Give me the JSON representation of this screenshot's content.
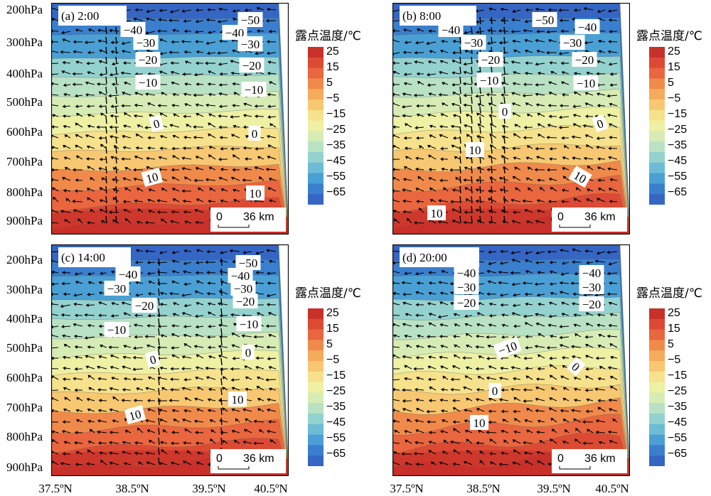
{
  "colorbar": {
    "title": "露点温度/℃",
    "ticks": [
      "25",
      "15",
      "5",
      "−5",
      "−15",
      "−25",
      "−35",
      "−45",
      "−55",
      "−65"
    ],
    "colors": [
      "#c8302a",
      "#dc4a34",
      "#e9663e",
      "#f08a4b",
      "#f5ab5c",
      "#f7c871",
      "#f6e28c",
      "#eef0a3",
      "#d7ecb5",
      "#b8e2c3",
      "#94d2cf",
      "#6cbcd6",
      "#4aa0d4",
      "#3a7fcd",
      "#3566c4"
    ]
  },
  "x_ticks": [
    "37.5ºN",
    "38.5ºN",
    "39.5ºN",
    "40.5ºN"
  ],
  "pressure_ticks": [
    "200hPa",
    "300hPa",
    "400hPa",
    "500hPa",
    "600hPa",
    "700hPa",
    "800hPa",
    "900hPa"
  ],
  "scale_bar": {
    "start": "0",
    "end": "36 km"
  },
  "panels": [
    {
      "title": "(a) 2:00",
      "contour_labels": [
        "−50",
        "−40",
        "−40",
        "−30",
        "−30",
        "−20",
        "−20",
        "−10",
        "−10",
        "0",
        "0",
        "10",
        "10"
      ]
    },
    {
      "title": "(b) 8:00",
      "contour_labels": [
        "−50",
        "−40",
        "−40",
        "−30",
        "−30",
        "−20",
        "−20",
        "−10",
        "−10",
        "0",
        "0",
        "10",
        "10",
        "10"
      ]
    },
    {
      "title": "(c) 14:00",
      "contour_labels": [
        "−50",
        "−40",
        "−40",
        "−30",
        "−30",
        "−20",
        "−20",
        "−10",
        "−10",
        "0",
        "0",
        "10",
        "10"
      ]
    },
    {
      "title": "(d) 20:00",
      "contour_labels": [
        "−40",
        "−40",
        "−30",
        "−30",
        "−20",
        "−20",
        "−10",
        "0",
        "0",
        "10"
      ]
    }
  ],
  "chart_data": {
    "type": "heatmap",
    "title": "",
    "xlabel": "",
    "ylabel": "",
    "x": [
      "37.5ºN",
      "38.5ºN",
      "39.5ºN",
      "40.5ºN"
    ],
    "y": [
      "200hPa",
      "300hPa",
      "400hPa",
      "500hPa",
      "600hPa",
      "700hPa",
      "800hPa",
      "900hPa"
    ],
    "colorbar_label": "露点温度/℃",
    "colorbar_range": [
      -65,
      25
    ],
    "panels": [
      "(a) 2:00",
      "(b) 8:00",
      "(c) 14:00",
      "(d) 20:00"
    ]
  }
}
